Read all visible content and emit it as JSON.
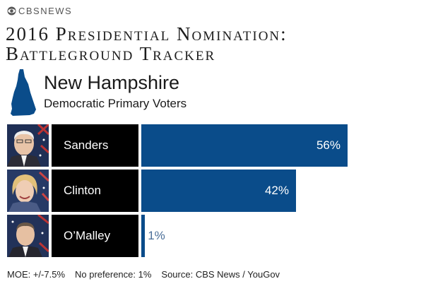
{
  "brand": {
    "text": "CBSNEWS"
  },
  "header": {
    "title_line1": "2016 Presidential Nomination:",
    "title_line2": "Battleground Tracker"
  },
  "state": {
    "name": "New Hampshire",
    "subtitle": "Democratic Primary Voters"
  },
  "colors": {
    "bar": "#0a4c8a",
    "name_box": "#000000",
    "outside_label": "#4a6e98"
  },
  "chart_data": {
    "type": "bar",
    "orientation": "horizontal",
    "categories": [
      "Sanders",
      "Clinton",
      "O’Malley"
    ],
    "values": [
      56,
      42,
      1
    ],
    "value_labels": [
      "56%",
      "42%",
      "1%"
    ],
    "xlim": [
      0,
      100
    ]
  },
  "footer": {
    "moe": "MOE: +/-7.5%",
    "no_preference": "No preference: 1%",
    "source": "Source: CBS News / YouGov"
  }
}
